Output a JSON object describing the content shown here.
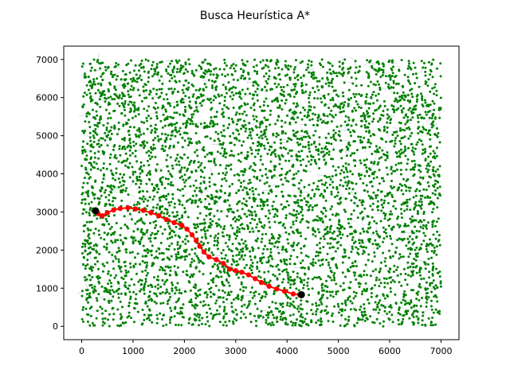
{
  "chart_data": {
    "type": "scatter",
    "title": "Busca Heurística A*",
    "xlabel": "",
    "ylabel": "",
    "xlim": [
      -350,
      7350
    ],
    "ylim": [
      -350,
      7350
    ],
    "x_ticks": [
      0,
      1000,
      2000,
      3000,
      4000,
      5000,
      6000,
      7000
    ],
    "y_ticks": [
      0,
      1000,
      2000,
      3000,
      4000,
      5000,
      6000,
      7000
    ],
    "grid": false,
    "legend": "none",
    "series": [
      {
        "role": "nodes",
        "color": "#008000",
        "marker": "circle",
        "count": 5000,
        "x_range": [
          0,
          7000
        ],
        "y_range": [
          0,
          7000
        ],
        "distribution": "uniform"
      },
      {
        "role": "path",
        "color": "#ff0000",
        "marker": "circle",
        "x": [
          4250,
          4120,
          3950,
          3800,
          3650,
          3500,
          3380,
          3250,
          3120,
          3000,
          2880,
          2760,
          2620,
          2480,
          2380,
          2300,
          2230,
          2150,
          2050,
          1950,
          1800,
          1650,
          1500,
          1350,
          1200,
          1050,
          900,
          750,
          620,
          500,
          400,
          320
        ],
        "y": [
          820,
          850,
          920,
          980,
          1050,
          1150,
          1250,
          1350,
          1420,
          1460,
          1500,
          1650,
          1750,
          1820,
          1950,
          2100,
          2250,
          2400,
          2550,
          2650,
          2720,
          2800,
          2900,
          2980,
          3040,
          3080,
          3110,
          3090,
          3050,
          2980,
          2900,
          2960
        ]
      },
      {
        "role": "endpoints",
        "color": "#000000",
        "marker": "circle",
        "x": [
          270,
          4280
        ],
        "y": [
          3030,
          830
        ]
      }
    ]
  }
}
